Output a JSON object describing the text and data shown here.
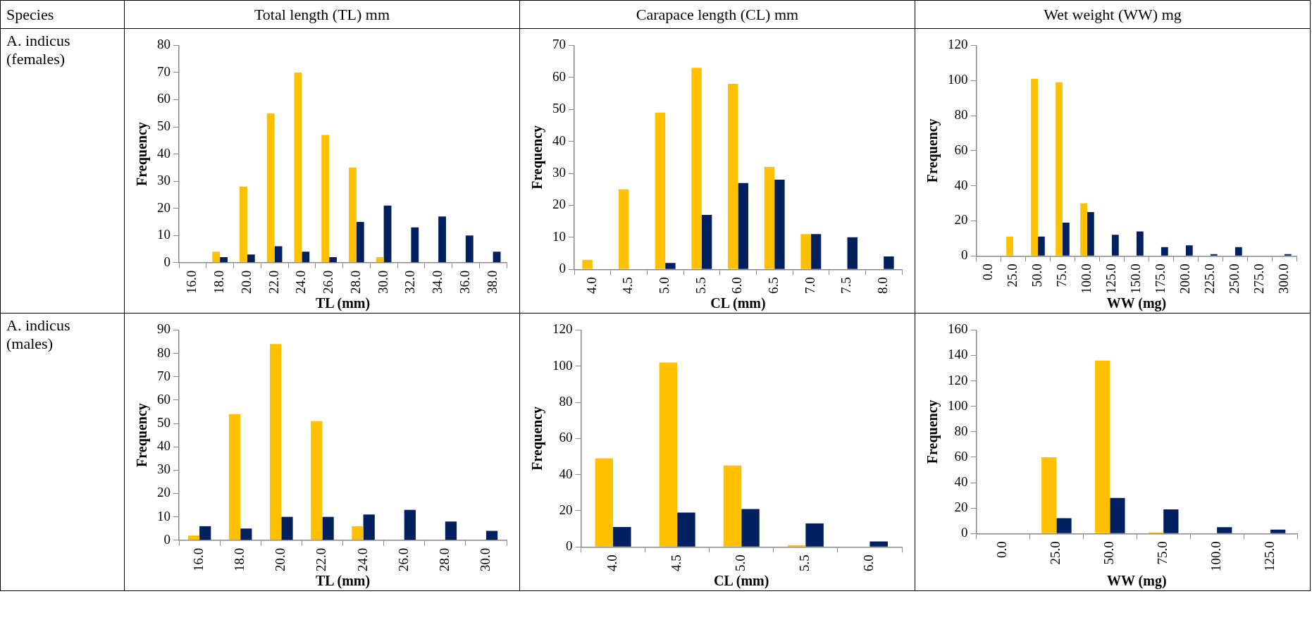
{
  "chart_data": [
    {
      "type": "bar",
      "title": "Total length (TL) mm",
      "annotations": [
        "Species",
        "A. indicus (females)"
      ],
      "xlabel": "TL (mm)",
      "ylabel": "Frequency",
      "grid": false,
      "categories": [
        "16.0",
        "18.0",
        "20.0",
        "22.0",
        "24.0",
        "26.0",
        "28.0",
        "30.0",
        "32.0",
        "34.0",
        "36.0",
        "38.0"
      ],
      "ylim": [
        0,
        80
      ],
      "yticks": [
        0,
        10,
        20,
        30,
        40,
        50,
        60,
        70,
        80
      ],
      "series": [
        {
          "color": "#ffc000",
          "values": [
            0,
            4,
            28,
            55,
            70,
            47,
            35,
            2,
            0,
            0,
            0,
            0
          ]
        },
        {
          "color": "#002060",
          "values": [
            0,
            2,
            3,
            6,
            4,
            2,
            15,
            21,
            13,
            17,
            10,
            4
          ]
        }
      ]
    },
    {
      "type": "bar",
      "title": "Carapace length (CL) mm",
      "xlabel": "CL (mm)",
      "ylabel": "Frequency",
      "grid": false,
      "categories": [
        "4.0",
        "4.5",
        "5.0",
        "5.5",
        "6.0",
        "6.5",
        "7.0",
        "7.5",
        "8.0"
      ],
      "ylim": [
        0,
        70
      ],
      "yticks": [
        0,
        10,
        20,
        30,
        40,
        50,
        60,
        70
      ],
      "series": [
        {
          "color": "#ffc000",
          "values": [
            3,
            25,
            49,
            63,
            58,
            32,
            11,
            0,
            0
          ]
        },
        {
          "color": "#002060",
          "values": [
            0,
            0,
            2,
            17,
            27,
            28,
            11,
            10,
            4
          ]
        }
      ]
    },
    {
      "type": "bar",
      "title": "Wet weight (WW) mg",
      "xlabel": "WW (mg)",
      "ylabel": "Frequency",
      "grid": false,
      "categories": [
        "0.0",
        "25.0",
        "50.0",
        "75.0",
        "100.0",
        "125.0",
        "150.0",
        "175.0",
        "200.0",
        "225.0",
        "250.0",
        "275.0",
        "300.0"
      ],
      "ylim": [
        0,
        120
      ],
      "yticks": [
        0,
        20,
        40,
        60,
        80,
        100,
        120
      ],
      "series": [
        {
          "color": "#ffc000",
          "values": [
            0,
            11,
            101,
            99,
            30,
            0,
            0,
            0,
            0,
            0,
            0,
            0,
            0
          ]
        },
        {
          "color": "#002060",
          "values": [
            0,
            0,
            11,
            19,
            25,
            12,
            14,
            5,
            6,
            1,
            5,
            0,
            1
          ]
        }
      ]
    },
    {
      "type": "bar",
      "annotations": [
        "A. indicus (males)"
      ],
      "xlabel": "TL (mm)",
      "ylabel": "Frequency",
      "grid": false,
      "categories": [
        "16.0",
        "18.0",
        "20.0",
        "22.0",
        "24.0",
        "26.0",
        "28.0",
        "30.0"
      ],
      "ylim": [
        0,
        90
      ],
      "yticks": [
        0,
        10,
        20,
        30,
        40,
        50,
        60,
        70,
        80,
        90
      ],
      "series": [
        {
          "color": "#ffc000",
          "values": [
            2,
            54,
            84,
            51,
            6,
            0,
            0,
            0
          ]
        },
        {
          "color": "#002060",
          "values": [
            6,
            5,
            10,
            10,
            11,
            13,
            8,
            4
          ]
        }
      ]
    },
    {
      "type": "bar",
      "xlabel": "CL (mm)",
      "ylabel": "Frequency",
      "grid": false,
      "categories": [
        "4.0",
        "4.5",
        "5.0",
        "5.5",
        "6.0"
      ],
      "ylim": [
        0,
        120
      ],
      "yticks": [
        0,
        20,
        40,
        60,
        80,
        100,
        120
      ],
      "series": [
        {
          "color": "#ffc000",
          "values": [
            49,
            102,
            45,
            1,
            0
          ]
        },
        {
          "color": "#002060",
          "values": [
            11,
            19,
            21,
            13,
            3
          ]
        }
      ]
    },
    {
      "type": "bar",
      "xlabel": "WW (mg)",
      "ylabel": "Frequency",
      "grid": false,
      "categories": [
        "0.0",
        "25.0",
        "50.0",
        "75.0",
        "100.0",
        "125.0"
      ],
      "ylim": [
        0,
        160
      ],
      "yticks": [
        0,
        20,
        40,
        60,
        80,
        100,
        120,
        140,
        160
      ],
      "series": [
        {
          "color": "#ffc000",
          "values": [
            0,
            60,
            136,
            1,
            0,
            0
          ]
        },
        {
          "color": "#002060",
          "values": [
            0,
            12,
            28,
            19,
            5,
            3
          ]
        }
      ]
    }
  ]
}
